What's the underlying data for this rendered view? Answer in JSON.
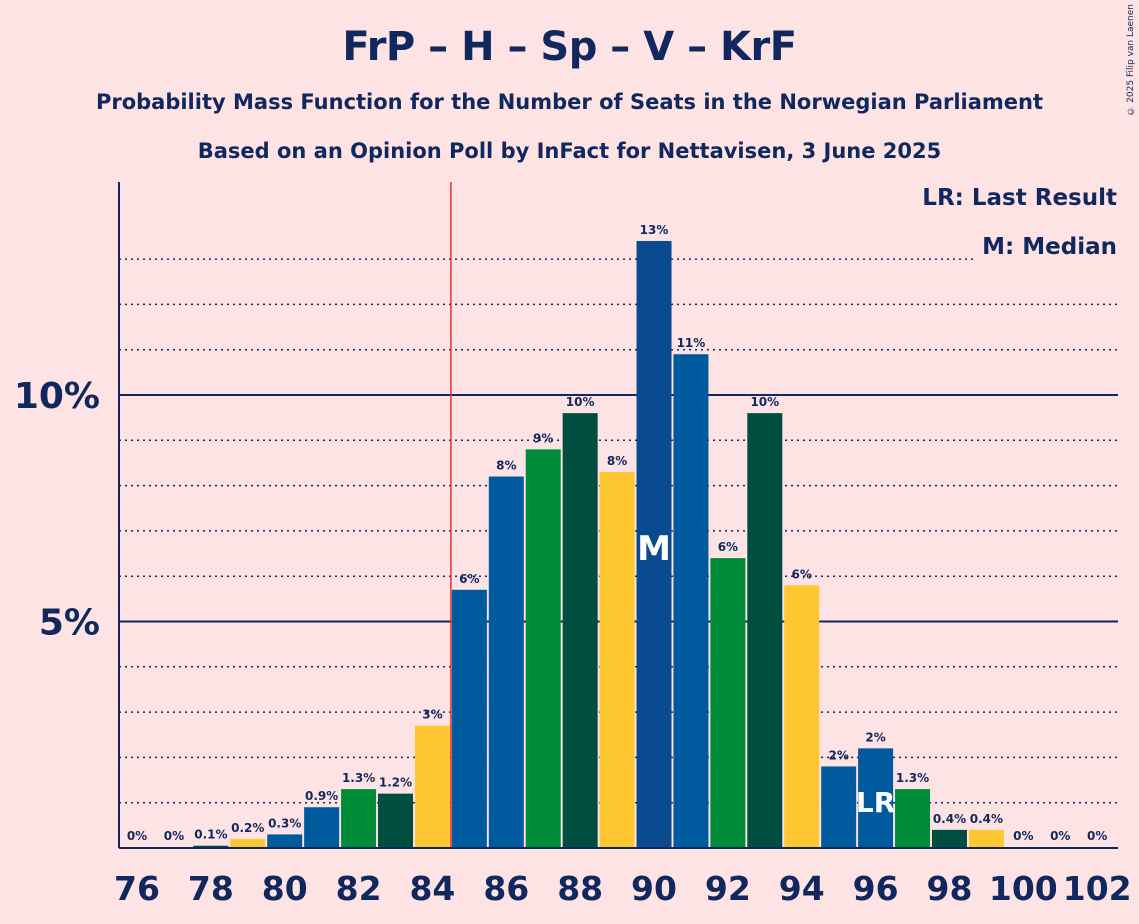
{
  "title": "FrP – H – Sp – V – KrF",
  "subtitle_1": "Probability Mass Function for the Number of Seats in the Norwegian Parliament",
  "subtitle_2": "Based on an Opinion Poll by InFact for Nettavisen, 3 June 2025",
  "copyright": "© 2025 Filip van Laenen",
  "legend": {
    "last_result": "LR: Last Result",
    "median": "M: Median"
  },
  "colors": {
    "background": "#fde3e4",
    "text": "#10285e",
    "last_result_line": "#e8312a",
    "bar_palette": [
      "#0a4a8f",
      "#005b9e",
      "#008b39",
      "#004e3f",
      "#ffc832"
    ]
  },
  "chart_data": {
    "type": "bar",
    "x": [
      76,
      77,
      78,
      79,
      80,
      81,
      82,
      83,
      84,
      85,
      86,
      87,
      88,
      89,
      90,
      91,
      92,
      93,
      94,
      95,
      96,
      97,
      98,
      99,
      100,
      101,
      102
    ],
    "values": [
      0,
      0,
      0.05,
      0.2,
      0.3,
      0.9,
      1.3,
      1.2,
      2.7,
      5.7,
      8.2,
      8.8,
      9.6,
      8.3,
      13.4,
      10.9,
      6.4,
      9.6,
      5.8,
      1.8,
      2.2,
      1.3,
      0.4,
      0.4,
      0,
      0,
      0
    ],
    "data_labels": [
      "0%",
      "0%",
      "0.1%",
      "0.2%",
      "0.3%",
      "0.9%",
      "1.3%",
      "1.2%",
      "3%",
      "6%",
      "8%",
      "9%",
      "10%",
      "8%",
      "13%",
      "11%",
      "6%",
      "10%",
      "6%",
      "2%",
      "2%",
      "1.3%",
      "0.4%",
      "0.4%",
      "0%",
      "0%",
      "0%"
    ],
    "bar_colors": [
      "#005b9e",
      "#008b39",
      "#004e3f",
      "#ffc832",
      "#005b9e",
      "#005b9e",
      "#008b39",
      "#004e3f",
      "#ffc832",
      "#005b9e",
      "#005b9e",
      "#008b39",
      "#004e3f",
      "#ffc832",
      "#0a4a8f",
      "#005b9e",
      "#008b39",
      "#004e3f",
      "#ffc832",
      "#005b9e",
      "#005b9e",
      "#008b39",
      "#004e3f",
      "#ffc832",
      "#005b9e",
      "#005b9e",
      "#008b39"
    ],
    "x_tick_labels": [
      "76",
      "78",
      "80",
      "82",
      "84",
      "86",
      "88",
      "90",
      "92",
      "94",
      "96",
      "98",
      "100",
      "102"
    ],
    "y_tick_labels": [
      "5%",
      "10%"
    ],
    "ylim": [
      0,
      14.5
    ],
    "last_result": 85,
    "median": 90,
    "median_marker": "M",
    "last_result_marker": "LR",
    "last_result_bar": 96,
    "grid": true
  }
}
